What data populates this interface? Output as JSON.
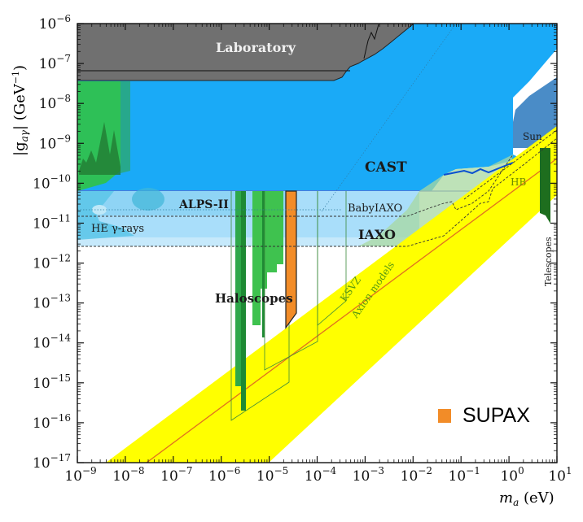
{
  "chart_data": {
    "type": "area",
    "title": "",
    "xlabel": "m_a (eV)",
    "ylabel": "|g_aγ| (GeV^-1)",
    "xscale": "log",
    "yscale": "log",
    "xlim": [
      1e-09,
      10
    ],
    "ylim": [
      1e-17,
      1e-06
    ],
    "grid": false,
    "x_tick_labels": [
      "10^-9",
      "10^-8",
      "10^-7",
      "10^-6",
      "10^-5",
      "10^-4",
      "10^-3",
      "10^-2",
      "10^-1",
      "10^0",
      "10^1"
    ],
    "y_tick_labels": [
      "10^-6",
      "10^-7",
      "10^-8",
      "10^-9",
      "10^-10",
      "10^-11",
      "10^-12",
      "10^-13",
      "10^-14",
      "10^-15",
      "10^-16",
      "10^-17"
    ],
    "regions": [
      {
        "name": "Laboratory",
        "color": "#707070",
        "bound_g": 4e-08,
        "x_range": [
          1e-09,
          0.001
        ]
      },
      {
        "name": "CAST",
        "color": "#1aaaf7",
        "bound_g": 6.6e-11,
        "x_range": [
          1e-09,
          0.1
        ]
      },
      {
        "name": "HE γ-rays",
        "color": "#5bc6e8",
        "x_range": [
          1e-09,
          5e-07
        ]
      },
      {
        "name": "ALPS-II",
        "color": "#8fd4f5",
        "bound_g": 2e-11,
        "x_range": [
          1e-09,
          0.0002
        ]
      },
      {
        "name": "BabyIAXO",
        "color": "#a9defa",
        "bound_g": 1.5e-11,
        "x_range": [
          1e-09,
          0.3
        ]
      },
      {
        "name": "IAXO",
        "color": "#c6e9fb",
        "bound_g": 3e-12,
        "x_range": [
          1e-09,
          0.2
        ]
      },
      {
        "name": "Haloscopes",
        "color": "#2db84a",
        "x_range": [
          1.6e-06,
          4e-05
        ],
        "min_g": 1.5e-16
      },
      {
        "name": "SUPAX",
        "color": "#f28c28",
        "x_range": [
          2.3e-05,
          4e-05
        ],
        "g_range": [
          1e-14,
          6.6e-11
        ]
      },
      {
        "name": "Sun",
        "color": "#4a8cc7",
        "x_range": [
          0.3,
          10
        ],
        "bound_g": 8e-10
      },
      {
        "name": "HB",
        "color": "#6b6bd6",
        "bound_g": 6.6e-11,
        "x_range": [
          0.1,
          10
        ]
      },
      {
        "name": "Telescopes",
        "color": "#1e6e1e",
        "x_range": [
          3,
          7
        ],
        "g_range": [
          2e-11,
          1e-09
        ]
      },
      {
        "name": "Axion models",
        "color": "#ffff00",
        "type": "band"
      },
      {
        "name": "KSVZ",
        "color": "#e07020",
        "type": "line"
      }
    ],
    "legend": [
      {
        "label": "SUPAX",
        "color": "#f28c28"
      }
    ]
  },
  "labels": {
    "laboratory": "Laboratory",
    "cast": "CAST",
    "alps": "ALPS-II",
    "he_gamma": "HE γ-rays",
    "babyiaxo": "BabyIAXO",
    "iaxo": "IAXO",
    "haloscopes": "Haloscopes",
    "sun": "Sun",
    "hb": "HB",
    "ksvz": "KSVZ",
    "axion_models": "Axion models",
    "telescopes": "Telescopes",
    "xlabel_main": "m",
    "xlabel_sub": "a",
    "xlabel_unit": " (eV)",
    "ylabel": "|g",
    "ylabel_sub": "aγ",
    "ylabel_unit": "| (GeV",
    "ylabel_exp": "−1",
    "ylabel_close": ")"
  },
  "xticks": [
    {
      "base": "10",
      "exp": "−9"
    },
    {
      "base": "10",
      "exp": "−8"
    },
    {
      "base": "10",
      "exp": "−7"
    },
    {
      "base": "10",
      "exp": "−6"
    },
    {
      "base": "10",
      "exp": "−5"
    },
    {
      "base": "10",
      "exp": "−4"
    },
    {
      "base": "10",
      "exp": "−3"
    },
    {
      "base": "10",
      "exp": "−2"
    },
    {
      "base": "10",
      "exp": "−1"
    },
    {
      "base": "10",
      "exp": "0"
    },
    {
      "base": "10",
      "exp": "1"
    }
  ],
  "yticks": [
    {
      "base": "10",
      "exp": "−6"
    },
    {
      "base": "10",
      "exp": "−7"
    },
    {
      "base": "10",
      "exp": "−8"
    },
    {
      "base": "10",
      "exp": "−9"
    },
    {
      "base": "10",
      "exp": "−10"
    },
    {
      "base": "10",
      "exp": "−11"
    },
    {
      "base": "10",
      "exp": "−12"
    },
    {
      "base": "10",
      "exp": "−13"
    },
    {
      "base": "10",
      "exp": "−14"
    },
    {
      "base": "10",
      "exp": "−15"
    },
    {
      "base": "10",
      "exp": "−16"
    },
    {
      "base": "10",
      "exp": "−17"
    }
  ],
  "legend": {
    "label": "SUPAX",
    "color": "#f28c28"
  }
}
